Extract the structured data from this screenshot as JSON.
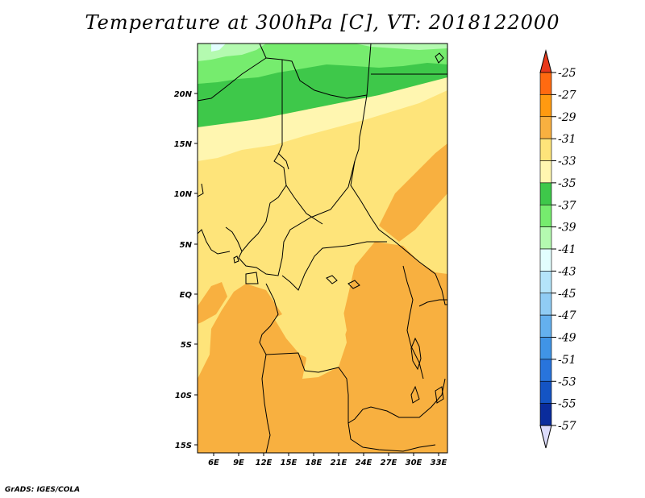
{
  "title": "Temperature at 300hPa [C], VT: 2018122000",
  "credit": "GrADS: IGES/COLA",
  "map": {
    "lat_labels": [
      "20N",
      "15N",
      "10N",
      "5N",
      "EQ",
      "5S",
      "10S",
      "15S"
    ],
    "lon_labels": [
      "6E",
      "9E",
      "12E",
      "15E",
      "18E",
      "21E",
      "24E",
      "27E",
      "30E",
      "33E"
    ],
    "fill_colors": {
      "c25": "#ff6a1a",
      "c27": "#ff9a10",
      "c29": "#f8b040",
      "c31": "#fee47a",
      "c33": "#fff6b0",
      "c35": "#3ec84a",
      "c37": "#76ec6e",
      "c39": "#b4fab0",
      "c41": "#e2fefe"
    }
  },
  "colorbar": {
    "labels": [
      "-25",
      "-27",
      "-29",
      "-31",
      "-33",
      "-35",
      "-37",
      "-39",
      "-41",
      "-43",
      "-45",
      "-47",
      "-49",
      "-51",
      "-53",
      "-55",
      "-57"
    ],
    "colors": [
      "#e8391b",
      "#ff6a10",
      "#ff9a10",
      "#f8b040",
      "#fee47a",
      "#fff6b0",
      "#3ec84a",
      "#76ec6e",
      "#b4fab0",
      "#e2fefe",
      "#b4e4fa",
      "#90ccf4",
      "#64b0ee",
      "#4094e6",
      "#2874dc",
      "#1454c4",
      "#0a2c9c",
      "#101078",
      "#dcdcfc"
    ]
  }
}
